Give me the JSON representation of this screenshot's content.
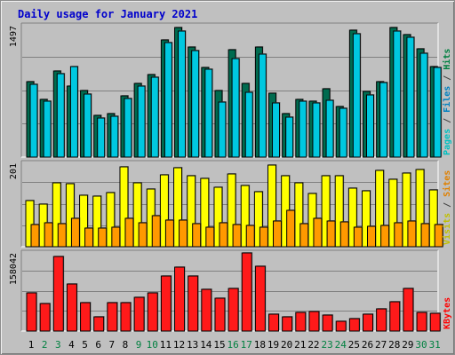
{
  "chart_data": {
    "title": "Daily usage for January 2021",
    "type": "bar",
    "categories": [
      "1",
      "2",
      "3",
      "4",
      "5",
      "6",
      "7",
      "8",
      "9",
      "10",
      "11",
      "12",
      "13",
      "14",
      "15",
      "16",
      "17",
      "18",
      "19",
      "20",
      "21",
      "22",
      "23",
      "24",
      "25",
      "26",
      "27",
      "28",
      "29",
      "30",
      "31"
    ],
    "weekend_days": [
      "2",
      "3",
      "9",
      "10",
      "16",
      "17",
      "23",
      "24",
      "30",
      "31"
    ],
    "panels": [
      {
        "name": "pages-files-hits",
        "max_label": "1497",
        "ylim": [
          0,
          1497
        ],
        "legend": [
          {
            "text": "Pages",
            "color": "#00c0c0"
          },
          {
            "text": " / ",
            "color": "#404040"
          },
          {
            "text": "Files",
            "color": "#0080c0"
          },
          {
            "text": " / ",
            "color": "#404040"
          },
          {
            "text": "Hits",
            "color": "#008040"
          }
        ],
        "series": [
          {
            "name": "Hits",
            "color": "#006b4f",
            "values": [
              860,
              655,
              985,
              805,
              760,
              475,
              495,
              695,
              840,
              945,
              1335,
              1480,
              1250,
              1025,
              760,
              1225,
              840,
              1250,
              725,
              495,
              660,
              640,
              780,
              580,
              1450,
              750,
              860,
              1480,
              1400,
              1235,
              1035
            ]
          },
          {
            "name": "Files",
            "color": "#00c8e0",
            "values": [
              830,
              635,
              950,
              1035,
              720,
              450,
              470,
              670,
              810,
              915,
              1305,
              1440,
              1210,
              1000,
              625,
              1125,
              735,
              1175,
              620,
              460,
              640,
              620,
              645,
              560,
              1410,
              705,
              845,
              1435,
              1365,
              1185,
              1020
            ]
          }
        ]
      },
      {
        "name": "visits-sites",
        "max_label": "201",
        "ylim": [
          0,
          201
        ],
        "legend": [
          {
            "text": "Visits",
            "color": "#c0c000"
          },
          {
            "text": " / ",
            "color": "#404040"
          },
          {
            "text": "Sites",
            "color": "#e08000"
          }
        ],
        "series": [
          {
            "name": "Visits",
            "color": "#ffff00",
            "values": [
              111,
              102,
              153,
              151,
              125,
              122,
              130,
              193,
              153,
              139,
              174,
              191,
              170,
              164,
              143,
              175,
              147,
              133,
              196,
              172,
              155,
              129,
              170,
              170,
              141,
              135,
              184,
              162,
              178,
              186,
              136
            ]
          },
          {
            "name": "Sites",
            "color": "#ff9900",
            "values": [
              54,
              57,
              56,
              68,
              45,
              44,
              47,
              68,
              58,
              74,
              64,
              64,
              56,
              46,
              57,
              53,
              51,
              46,
              62,
              88,
              55,
              68,
              62,
              59,
              48,
              49,
              51,
              57,
              62,
              56,
              54
            ]
          }
        ]
      },
      {
        "name": "kbytes",
        "max_label": "158042",
        "ylim": [
          0,
          158042
        ],
        "legend": [
          {
            "text": "KBytes",
            "color": "#ff0000"
          }
        ],
        "series": [
          {
            "name": "KBytes",
            "color": "#ff1a1a",
            "values": [
              78000,
              56000,
              150000,
              96000,
              58000,
              29000,
              58000,
              58000,
              68000,
              77000,
              112000,
              130000,
              112000,
              84000,
              66000,
              87000,
              158042,
              131000,
              34000,
              28000,
              38000,
              40000,
              33000,
              20000,
              26000,
              34000,
              45000,
              60000,
              86000,
              38000,
              36000
            ]
          }
        ]
      }
    ]
  }
}
